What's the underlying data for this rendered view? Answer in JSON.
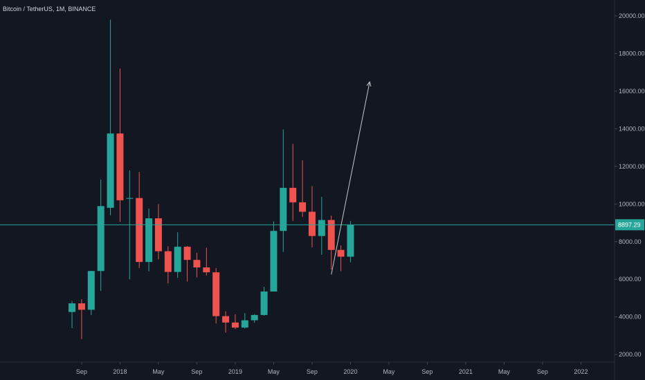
{
  "header": {
    "title": "Bitcoin / TetherUS, 1M, BINANCE"
  },
  "colors": {
    "background": "#131722",
    "up": "#26a69a",
    "down": "#ef5350",
    "line": "#26a69a",
    "arrow": "#c8c8c8",
    "text": "#b2b5be"
  },
  "chart_data": {
    "type": "candlestick",
    "symbol": "Bitcoin / TetherUS",
    "interval": "1M",
    "exchange": "BINANCE",
    "ylim": [
      1600,
      20700
    ],
    "y_ticks": [
      2000,
      4000,
      6000,
      8000,
      10000,
      12000,
      14000,
      16000,
      18000,
      20000
    ],
    "y_tick_labels": [
      "2000.00",
      "4000.00",
      "6000.00",
      "8000.00",
      "10000.00",
      "12000.00",
      "14000.00",
      "16000.00",
      "18000.00",
      "20000.00"
    ],
    "x_ticks": [
      {
        "label": "Sep",
        "month": "2017-09"
      },
      {
        "label": "2018",
        "month": "2018-01"
      },
      {
        "label": "May",
        "month": "2018-05"
      },
      {
        "label": "Sep",
        "month": "2018-09"
      },
      {
        "label": "2019",
        "month": "2019-01"
      },
      {
        "label": "May",
        "month": "2019-05"
      },
      {
        "label": "Sep",
        "month": "2019-09"
      },
      {
        "label": "2020",
        "month": "2020-01"
      },
      {
        "label": "May",
        "month": "2020-05"
      },
      {
        "label": "Sep",
        "month": "2020-09"
      },
      {
        "label": "2021",
        "month": "2021-01"
      },
      {
        "label": "May",
        "month": "2021-05"
      },
      {
        "label": "Sep",
        "month": "2021-09"
      },
      {
        "label": "2022",
        "month": "2022-01"
      }
    ],
    "x_range": [
      "2017-01",
      "2022-04"
    ],
    "candles": [
      {
        "month": "2017-08",
        "open": 4260,
        "high": 4850,
        "low": 3400,
        "close": 4720
      },
      {
        "month": "2017-09",
        "open": 4720,
        "high": 4940,
        "low": 2820,
        "close": 4380
      },
      {
        "month": "2017-10",
        "open": 4380,
        "high": 6450,
        "low": 4100,
        "close": 6440
      },
      {
        "month": "2017-11",
        "open": 6440,
        "high": 11300,
        "low": 5380,
        "close": 9890
      },
      {
        "month": "2017-12",
        "open": 9800,
        "high": 19800,
        "low": 9400,
        "close": 13750
      },
      {
        "month": "2018-01",
        "open": 13750,
        "high": 17200,
        "low": 9050,
        "close": 10200
      },
      {
        "month": "2018-02",
        "open": 10280,
        "high": 11790,
        "low": 6000,
        "close": 10320
      },
      {
        "month": "2018-03",
        "open": 10320,
        "high": 11700,
        "low": 6600,
        "close": 6920
      },
      {
        "month": "2018-04",
        "open": 6920,
        "high": 9760,
        "low": 6420,
        "close": 9240
      },
      {
        "month": "2018-05",
        "open": 9240,
        "high": 10000,
        "low": 7060,
        "close": 7490
      },
      {
        "month": "2018-06",
        "open": 7490,
        "high": 7760,
        "low": 5780,
        "close": 6390
      },
      {
        "month": "2018-07",
        "open": 6390,
        "high": 8500,
        "low": 6070,
        "close": 7730
      },
      {
        "month": "2018-08",
        "open": 7730,
        "high": 7770,
        "low": 5880,
        "close": 7030
      },
      {
        "month": "2018-09",
        "open": 7030,
        "high": 7410,
        "low": 6100,
        "close": 6630
      },
      {
        "month": "2018-10",
        "open": 6630,
        "high": 7680,
        "low": 6200,
        "close": 6370
      },
      {
        "month": "2018-11",
        "open": 6370,
        "high": 6600,
        "low": 3650,
        "close": 4040
      },
      {
        "month": "2018-12",
        "open": 4040,
        "high": 4300,
        "low": 3160,
        "close": 3700
      },
      {
        "month": "2019-01",
        "open": 3700,
        "high": 4140,
        "low": 3350,
        "close": 3430
      },
      {
        "month": "2019-02",
        "open": 3430,
        "high": 4200,
        "low": 3380,
        "close": 3820
      },
      {
        "month": "2019-03",
        "open": 3820,
        "high": 4150,
        "low": 3690,
        "close": 4100
      },
      {
        "month": "2019-04",
        "open": 4100,
        "high": 5600,
        "low": 4060,
        "close": 5350
      },
      {
        "month": "2019-05",
        "open": 5350,
        "high": 9080,
        "low": 5350,
        "close": 8570
      },
      {
        "month": "2019-06",
        "open": 8570,
        "high": 13970,
        "low": 7460,
        "close": 10860
      },
      {
        "month": "2019-07",
        "open": 10860,
        "high": 13200,
        "low": 9100,
        "close": 10090
      },
      {
        "month": "2019-08",
        "open": 10090,
        "high": 12330,
        "low": 9320,
        "close": 9590
      },
      {
        "month": "2019-09",
        "open": 9590,
        "high": 10950,
        "low": 7700,
        "close": 8300
      },
      {
        "month": "2019-10",
        "open": 8300,
        "high": 10380,
        "low": 7300,
        "close": 9150
      },
      {
        "month": "2019-11",
        "open": 9150,
        "high": 9380,
        "low": 6520,
        "close": 7560
      },
      {
        "month": "2019-12",
        "open": 7560,
        "high": 7800,
        "low": 6430,
        "close": 7200
      },
      {
        "month": "2020-01",
        "open": 7200,
        "high": 9100,
        "low": 6900,
        "close": 8897.29
      }
    ],
    "current_price": 8897.29,
    "current_price_label": "8897.29",
    "annotation_arrow": {
      "from": {
        "month": "2019-11",
        "price": 6250
      },
      "to": {
        "month": "2020-03",
        "price": 16500
      }
    }
  }
}
